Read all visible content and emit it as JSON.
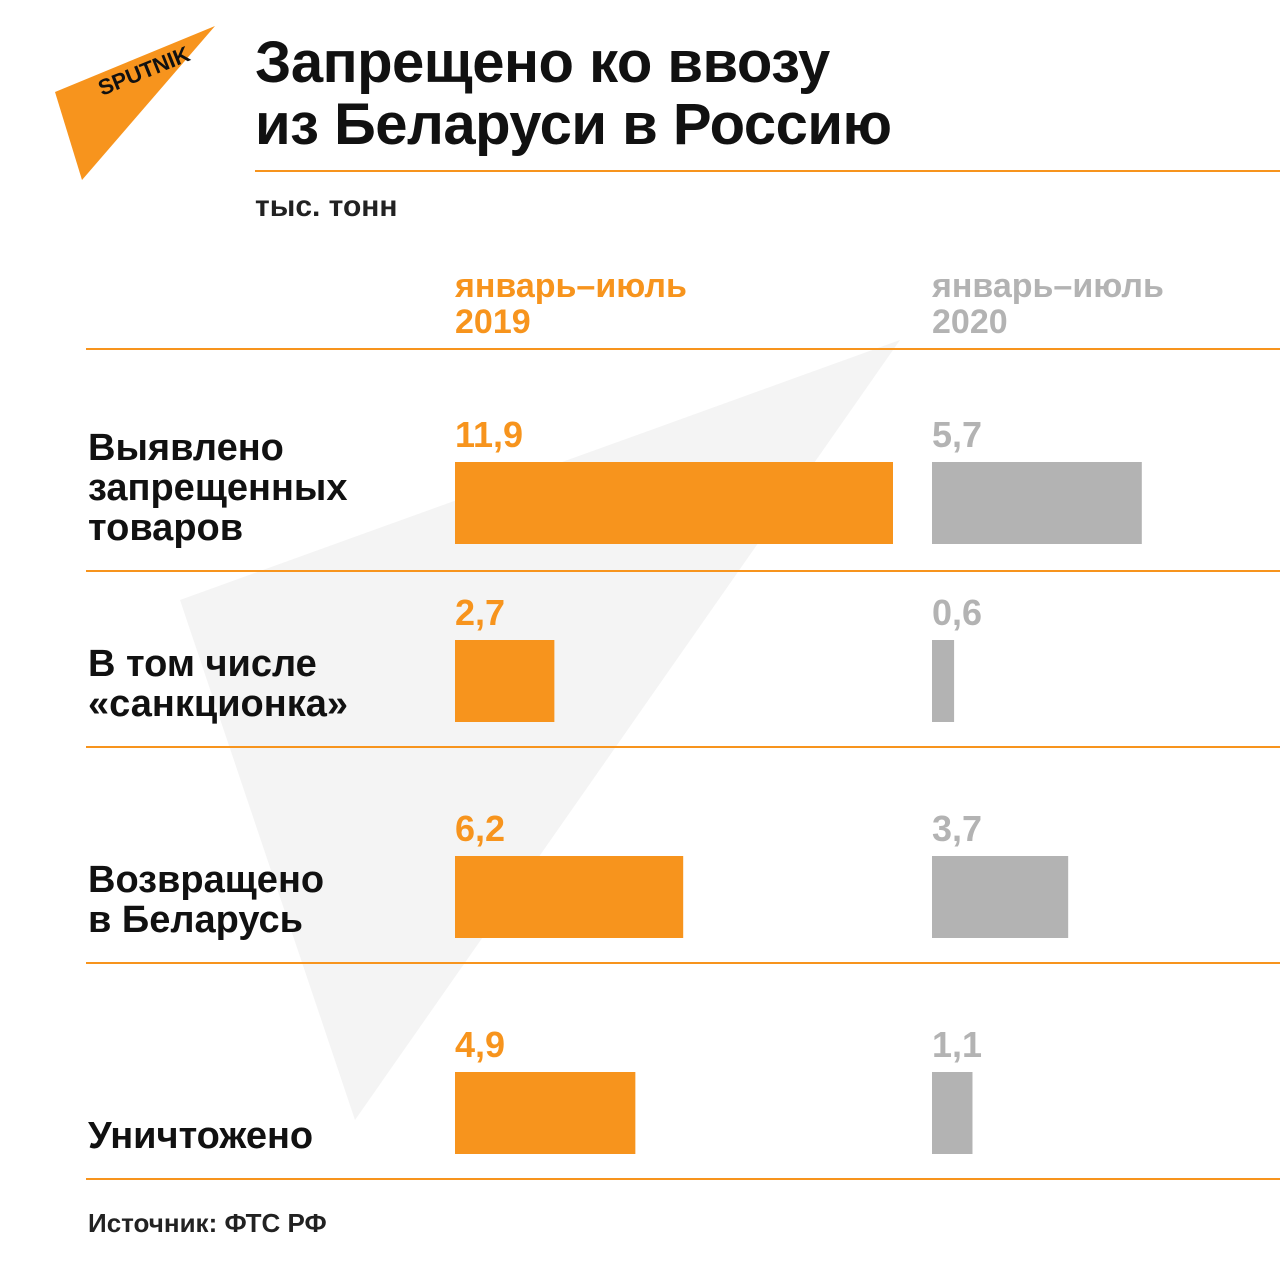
{
  "brand": {
    "logo_text": "SPUTNIK",
    "accent": "#f7941d",
    "secondary": "#b3b3b3"
  },
  "header": {
    "title_line1": "Запрещено ко ввозу",
    "title_line2": "из Беларуси в Россию",
    "unit": "тыс. тонн"
  },
  "columns": [
    {
      "line1": "январь–июль",
      "line2": "2019"
    },
    {
      "line1": "январь–июль",
      "line2": "2020"
    }
  ],
  "rows": [
    {
      "label_lines": [
        "Выявлено",
        "запрещенных",
        "товаров"
      ],
      "v2019": "11,9",
      "v2020": "5,7"
    },
    {
      "label_lines": [
        "В том числе",
        "«санкционка»"
      ],
      "v2019": "2,7",
      "v2020": "0,6"
    },
    {
      "label_lines": [
        "Возвращено",
        "в Беларусь"
      ],
      "v2019": "6,2",
      "v2020": "3,7"
    },
    {
      "label_lines": [
        "Уничтожено"
      ],
      "v2019": "4,9",
      "v2020": "1,1"
    }
  ],
  "source": "Источник: ФТС РФ",
  "chart_data": {
    "type": "bar",
    "orientation": "horizontal",
    "title": "Запрещено ко ввозу из Беларуси в Россию",
    "unit": "тыс. тонн",
    "categories": [
      "Выявлено запрещенных товаров",
      "В том числе «санкционка»",
      "Возвращено в Беларусь",
      "Уничтожено"
    ],
    "series": [
      {
        "name": "январь–июль 2019",
        "color": "#f7941d",
        "values": [
          11.9,
          2.7,
          6.2,
          4.9
        ]
      },
      {
        "name": "январь–июль 2020",
        "color": "#b3b3b3",
        "values": [
          5.7,
          0.6,
          3.7,
          1.1
        ]
      }
    ],
    "grid": false,
    "legend": "top"
  }
}
